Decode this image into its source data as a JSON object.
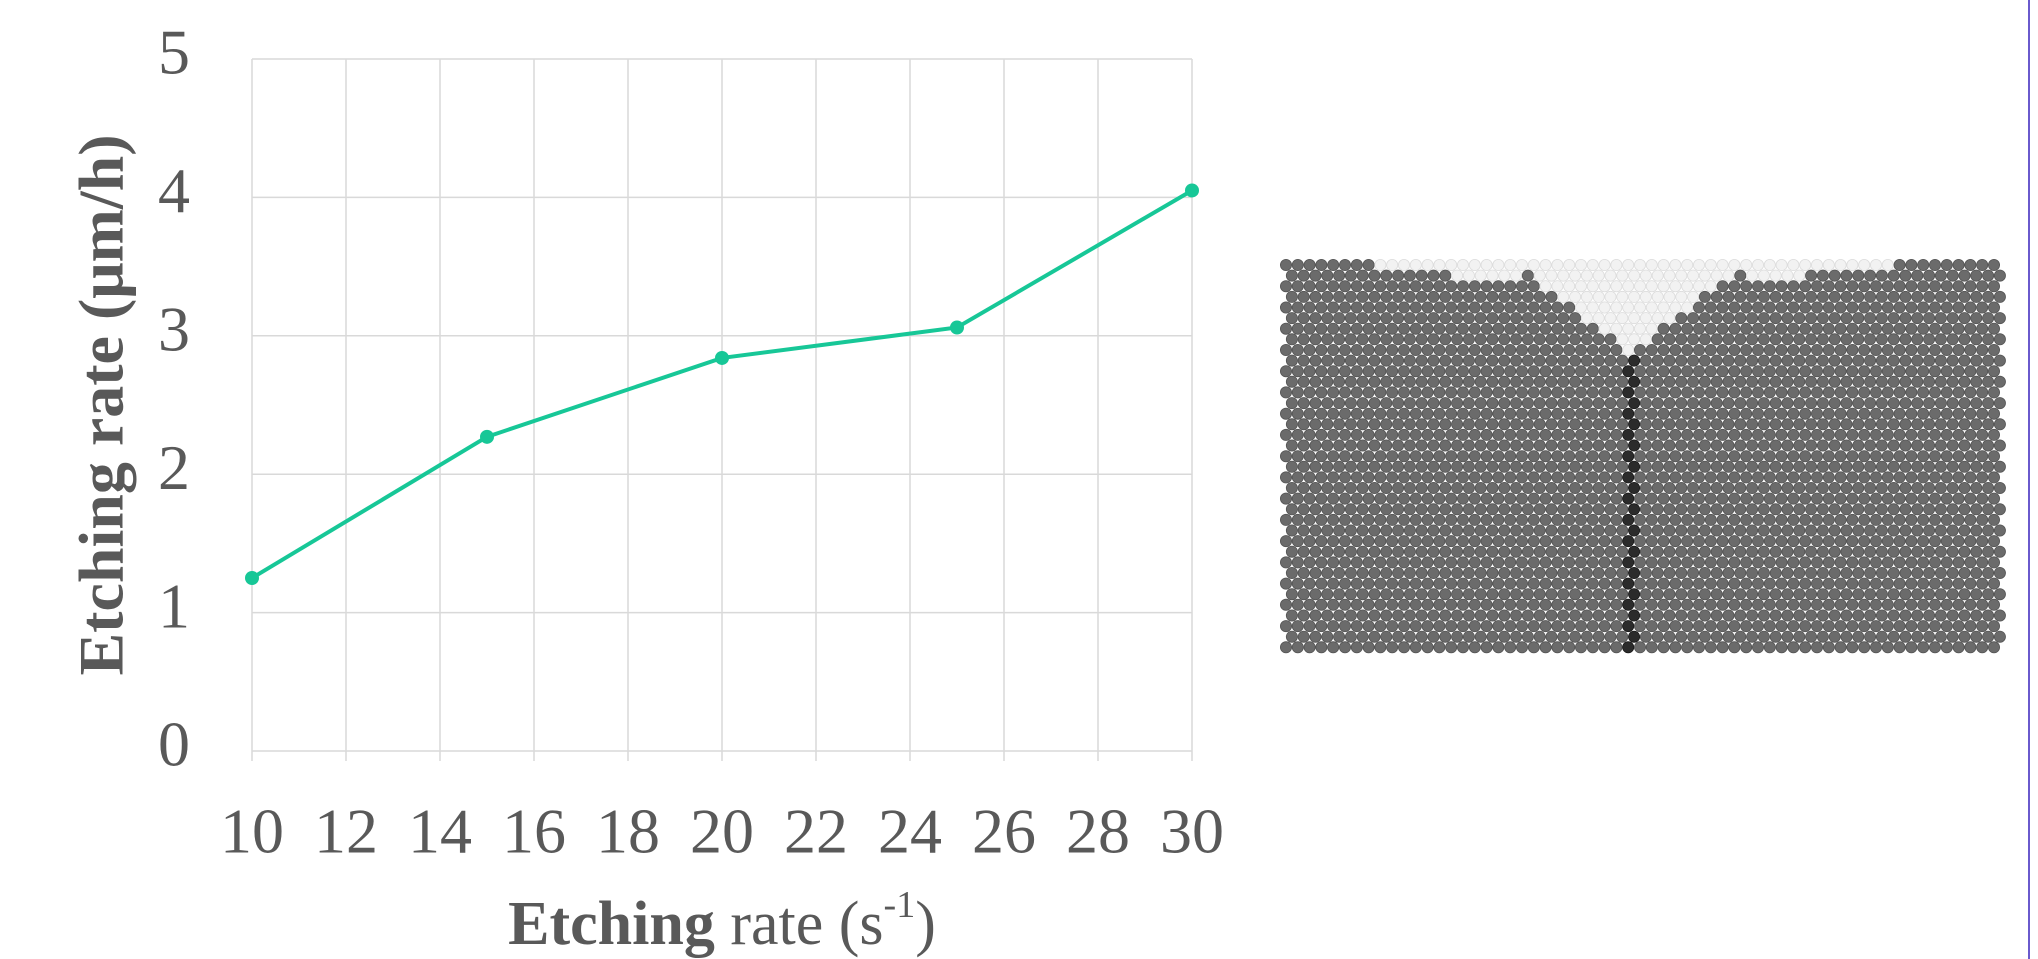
{
  "chart_data": {
    "type": "line",
    "y_label": "Etching rate (μm/h)",
    "x_label": {
      "bold": "Etching",
      "text": " rate (s",
      "sup": "-1",
      "close": ")"
    },
    "x": [
      10,
      15,
      20,
      25,
      30
    ],
    "series": [
      {
        "color": "#17c797",
        "values": [
          1.25,
          2.27,
          2.84,
          3.06,
          4.05
        ]
      }
    ],
    "xlim": [
      10,
      30
    ],
    "xticks": [
      10,
      12,
      14,
      16,
      18,
      20,
      22,
      24,
      26,
      28,
      30
    ],
    "ylim": [
      0,
      5
    ],
    "yticks": [
      0,
      1,
      2,
      3,
      4,
      5
    ],
    "grid": true
  }
}
